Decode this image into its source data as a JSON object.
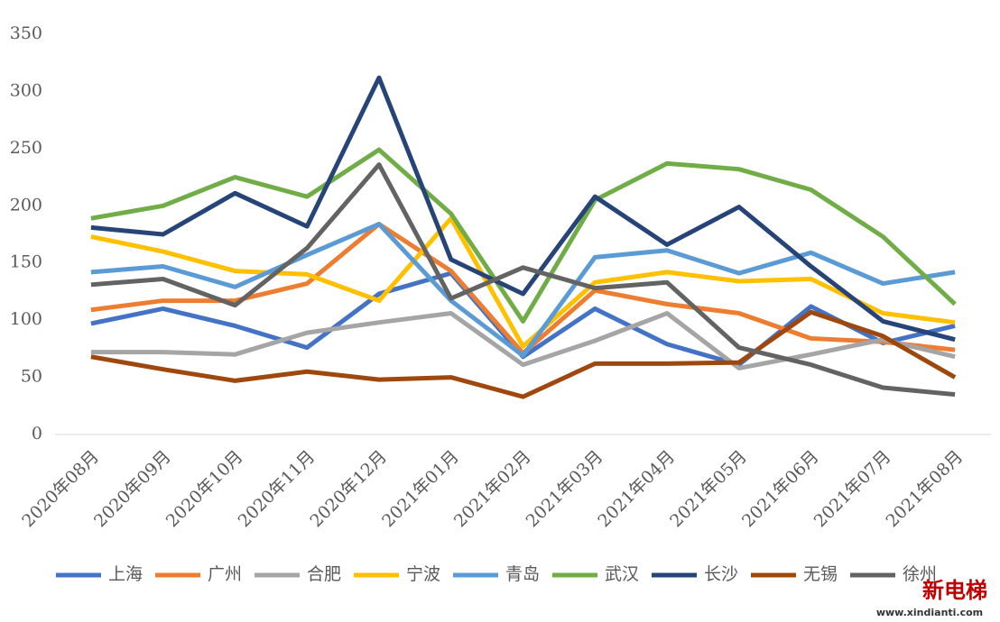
{
  "chart_data": {
    "type": "line",
    "categories": [
      "2020年08月",
      "2020年09月",
      "2020年10月",
      "2020年11月",
      "2020年12月",
      "2021年01月",
      "2021年02月",
      "2021年03月",
      "2021年04月",
      "2021年05月",
      "2021年06月",
      "2021年07月",
      "2021年08月"
    ],
    "ylim": [
      0,
      350
    ],
    "yticks": [
      0,
      50,
      100,
      150,
      200,
      250,
      300,
      350
    ],
    "grid": false,
    "legend": "bottom",
    "series": [
      {
        "name": "上海",
        "color": "#4472c4",
        "values": [
          97,
          110,
          95,
          76,
          123,
          141,
          68,
          110,
          79,
          61,
          112,
          80,
          95
        ]
      },
      {
        "name": "广州",
        "color": "#ed7d31",
        "values": [
          109,
          117,
          117,
          132,
          184,
          143,
          71,
          126,
          114,
          106,
          84,
          81,
          74
        ]
      },
      {
        "name": "合肥",
        "color": "#a5a5a5",
        "values": [
          72,
          72,
          70,
          89,
          98,
          106,
          61,
          82,
          106,
          58,
          70,
          83,
          68
        ]
      },
      {
        "name": "宁波",
        "color": "#ffc000",
        "values": [
          173,
          160,
          143,
          140,
          117,
          189,
          77,
          133,
          142,
          134,
          136,
          106,
          98
        ]
      },
      {
        "name": "青岛",
        "color": "#5b9bd5",
        "values": [
          142,
          147,
          129,
          157,
          184,
          117,
          69,
          155,
          161,
          141,
          159,
          132,
          142
        ]
      },
      {
        "name": "武汉",
        "color": "#70ad47",
        "values": [
          189,
          200,
          225,
          208,
          249,
          193,
          99,
          205,
          237,
          232,
          214,
          173,
          114
        ]
      },
      {
        "name": "长沙",
        "color": "#264478",
        "values": [
          181,
          175,
          211,
          182,
          312,
          153,
          123,
          208,
          166,
          199,
          147,
          99,
          83
        ]
      },
      {
        "name": "无锡",
        "color": "#9e480e",
        "values": [
          68,
          57,
          47,
          55,
          48,
          50,
          33,
          62,
          62,
          63,
          107,
          86,
          50
        ]
      },
      {
        "name": "徐州",
        "color": "#636363",
        "values": [
          131,
          136,
          113,
          163,
          236,
          119,
          146,
          128,
          133,
          76,
          61,
          41,
          35
        ]
      }
    ]
  },
  "watermark": {
    "title": "新电梯",
    "url": "www.xindianti.com"
  }
}
